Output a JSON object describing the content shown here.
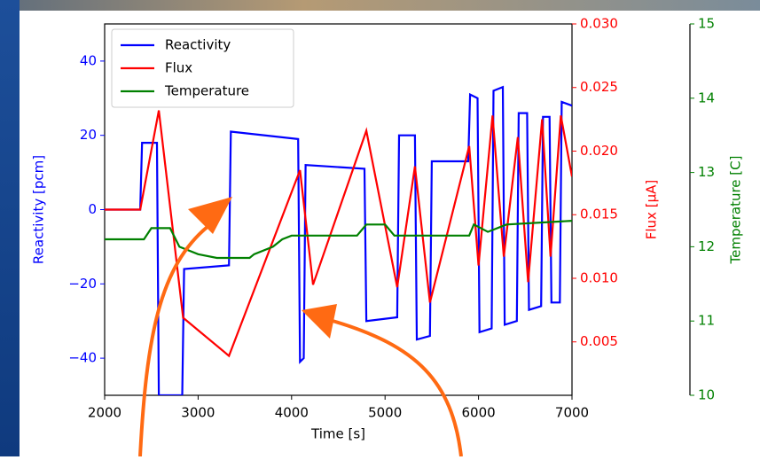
{
  "chart_data": {
    "type": "line",
    "xlabel": "Time [s]",
    "ylabel": "Reactivity [pcm]",
    "y2label": "Flux [μA]",
    "y3label": "Temperature [C]",
    "xlim": [
      2000,
      7000
    ],
    "xticks": [
      2000,
      3000,
      4000,
      5000,
      6000,
      7000
    ],
    "ylim": [
      -50,
      50
    ],
    "yticks": [
      {
        "value": -40,
        "label": "−40"
      },
      {
        "value": -20,
        "label": "−20"
      },
      0,
      20,
      40
    ],
    "y2lim": [
      0.0008,
      0.03
    ],
    "y2ticks": [
      0.005,
      {
        "value": 0.01,
        "label": "0.010"
      },
      0.015,
      {
        "value": 0.02,
        "label": "0.020"
      },
      0.025,
      {
        "value": 0.03,
        "label": "0.030"
      }
    ],
    "y3lim": [
      10,
      15
    ],
    "y3ticks": [
      10,
      11,
      12,
      13,
      14,
      15
    ],
    "legend": "upper left",
    "series": [
      {
        "name": "Reactivity",
        "color": "#0000ff",
        "axis": "y",
        "x": [
          2000,
          2380,
          2400,
          2560,
          2580,
          2830,
          2850,
          3330,
          3350,
          4070,
          4090,
          4130,
          4150,
          4780,
          4800,
          5130,
          5150,
          5320,
          5340,
          5480,
          5500,
          5890,
          5910,
          5990,
          6010,
          6140,
          6160,
          6260,
          6280,
          6410,
          6430,
          6520,
          6540,
          6670,
          6690,
          6760,
          6780,
          6870,
          6890,
          7000
        ],
        "values": [
          0,
          0,
          18,
          18,
          -50,
          -50,
          -16,
          -15,
          21,
          19,
          -41,
          -40,
          12,
          11,
          -30,
          -29,
          20,
          20,
          -35,
          -34,
          13,
          13,
          31,
          30,
          -33,
          -32,
          32,
          33,
          -31,
          -30,
          26,
          26,
          -27,
          -26,
          25,
          25,
          -25,
          -25,
          29,
          28
        ]
      },
      {
        "name": "Flux",
        "color": "#ff0000",
        "axis": "y2",
        "x": [
          2000,
          2380,
          2580,
          2840,
          3330,
          4090,
          4230,
          4800,
          5130,
          5320,
          5480,
          5900,
          6000,
          6150,
          6270,
          6420,
          6530,
          6680,
          6770,
          6880,
          7000
        ],
        "values": [
          0.0154,
          0.0154,
          0.0232,
          0.0069,
          0.0039,
          0.0185,
          0.0095,
          0.0216,
          0.0093,
          0.0188,
          0.0081,
          0.0204,
          0.011,
          0.0228,
          0.0117,
          0.0211,
          0.0097,
          0.0225,
          0.0117,
          0.0228,
          0.018
        ]
      },
      {
        "name": "Temperature",
        "color": "#008000",
        "axis": "y3",
        "x": [
          2000,
          2420,
          2500,
          2700,
          2800,
          3000,
          3200,
          3550,
          3600,
          3800,
          3900,
          4000,
          4700,
          4800,
          5000,
          5100,
          5900,
          5950,
          6100,
          6300,
          7000
        ],
        "values": [
          12.1,
          12.1,
          12.25,
          12.25,
          12.0,
          11.9,
          11.85,
          11.85,
          11.9,
          12.0,
          12.1,
          12.15,
          12.15,
          12.3,
          12.3,
          12.15,
          12.15,
          12.3,
          12.2,
          12.3,
          12.35
        ]
      }
    ]
  }
}
